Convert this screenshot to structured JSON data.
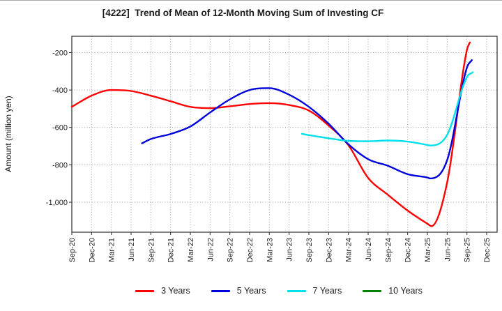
{
  "title": "[4222]  Trend of Mean of 12-Month Moving Sum of Investing CF",
  "chart_data": {
    "type": "line",
    "title": "[4222]  Trend of Mean of 12-Month Moving Sum of Investing CF",
    "xlabel": "",
    "ylabel": "Amount (million yen)",
    "x_categories": [
      "Sep-20",
      "Dec-20",
      "Mar-21",
      "Jun-21",
      "Sep-21",
      "Dec-21",
      "Mar-22",
      "Jun-22",
      "Sep-22",
      "Dec-22",
      "Mar-23",
      "Jun-23",
      "Sep-23",
      "Dec-23",
      "Mar-24",
      "Jun-24",
      "Sep-24",
      "Dec-24",
      "Mar-25",
      "Jun-25",
      "Sep-25",
      "Dec-25"
    ],
    "y_ticks": [
      -200,
      -400,
      -600,
      -800,
      -1000
    ],
    "y_tick_labels": [
      "-200",
      "-400",
      "-600",
      "-800",
      "-1,000"
    ],
    "ylim": [
      -1160,
      -112
    ],
    "grid": true,
    "grid_style": "dotted",
    "legend_position": "bottom",
    "note_units": "million yen; x values are quarter indices measured from Sep-20 (fractional = between quarters)",
    "series": [
      {
        "name": "3 Years",
        "color": "#ff0000",
        "points": [
          [
            0,
            -490
          ],
          [
            1,
            -430
          ],
          [
            2,
            -400
          ],
          [
            3,
            -405
          ],
          [
            4,
            -430
          ],
          [
            5,
            -460
          ],
          [
            6,
            -490
          ],
          [
            7,
            -497
          ],
          [
            8,
            -487
          ],
          [
            9,
            -475
          ],
          [
            10,
            -470
          ],
          [
            11,
            -480
          ],
          [
            12,
            -510
          ],
          [
            13,
            -590
          ],
          [
            14,
            -695
          ],
          [
            15,
            -870
          ],
          [
            16,
            -960
          ],
          [
            17,
            -1045
          ],
          [
            18,
            -1115
          ],
          [
            18.2,
            -1128
          ],
          [
            19,
            -895
          ],
          [
            20,
            -185
          ],
          [
            20.15,
            -145
          ]
        ]
      },
      {
        "name": "5 Years",
        "color": "#0000dd",
        "points": [
          [
            3.55,
            -685
          ],
          [
            4,
            -662
          ],
          [
            5,
            -635
          ],
          [
            6,
            -595
          ],
          [
            7,
            -520
          ],
          [
            8,
            -450
          ],
          [
            9,
            -400
          ],
          [
            10,
            -390
          ],
          [
            11,
            -425
          ],
          [
            12,
            -490
          ],
          [
            13,
            -580
          ],
          [
            14,
            -690
          ],
          [
            15,
            -770
          ],
          [
            16,
            -805
          ],
          [
            17,
            -850
          ],
          [
            18,
            -868
          ],
          [
            18.15,
            -873
          ],
          [
            19,
            -775
          ],
          [
            20,
            -280
          ],
          [
            20.25,
            -240
          ]
        ]
      },
      {
        "name": "7 Years",
        "color": "#00e0ea",
        "points": [
          [
            11.65,
            -634
          ],
          [
            12,
            -641
          ],
          [
            13,
            -658
          ],
          [
            14,
            -672
          ],
          [
            15,
            -674
          ],
          [
            16,
            -670
          ],
          [
            17,
            -676
          ],
          [
            18,
            -694
          ],
          [
            18.15,
            -697
          ],
          [
            19,
            -640
          ],
          [
            20,
            -330
          ],
          [
            20.3,
            -305
          ]
        ]
      },
      {
        "name": "10 Years",
        "color": "#008000",
        "points": []
      }
    ]
  }
}
